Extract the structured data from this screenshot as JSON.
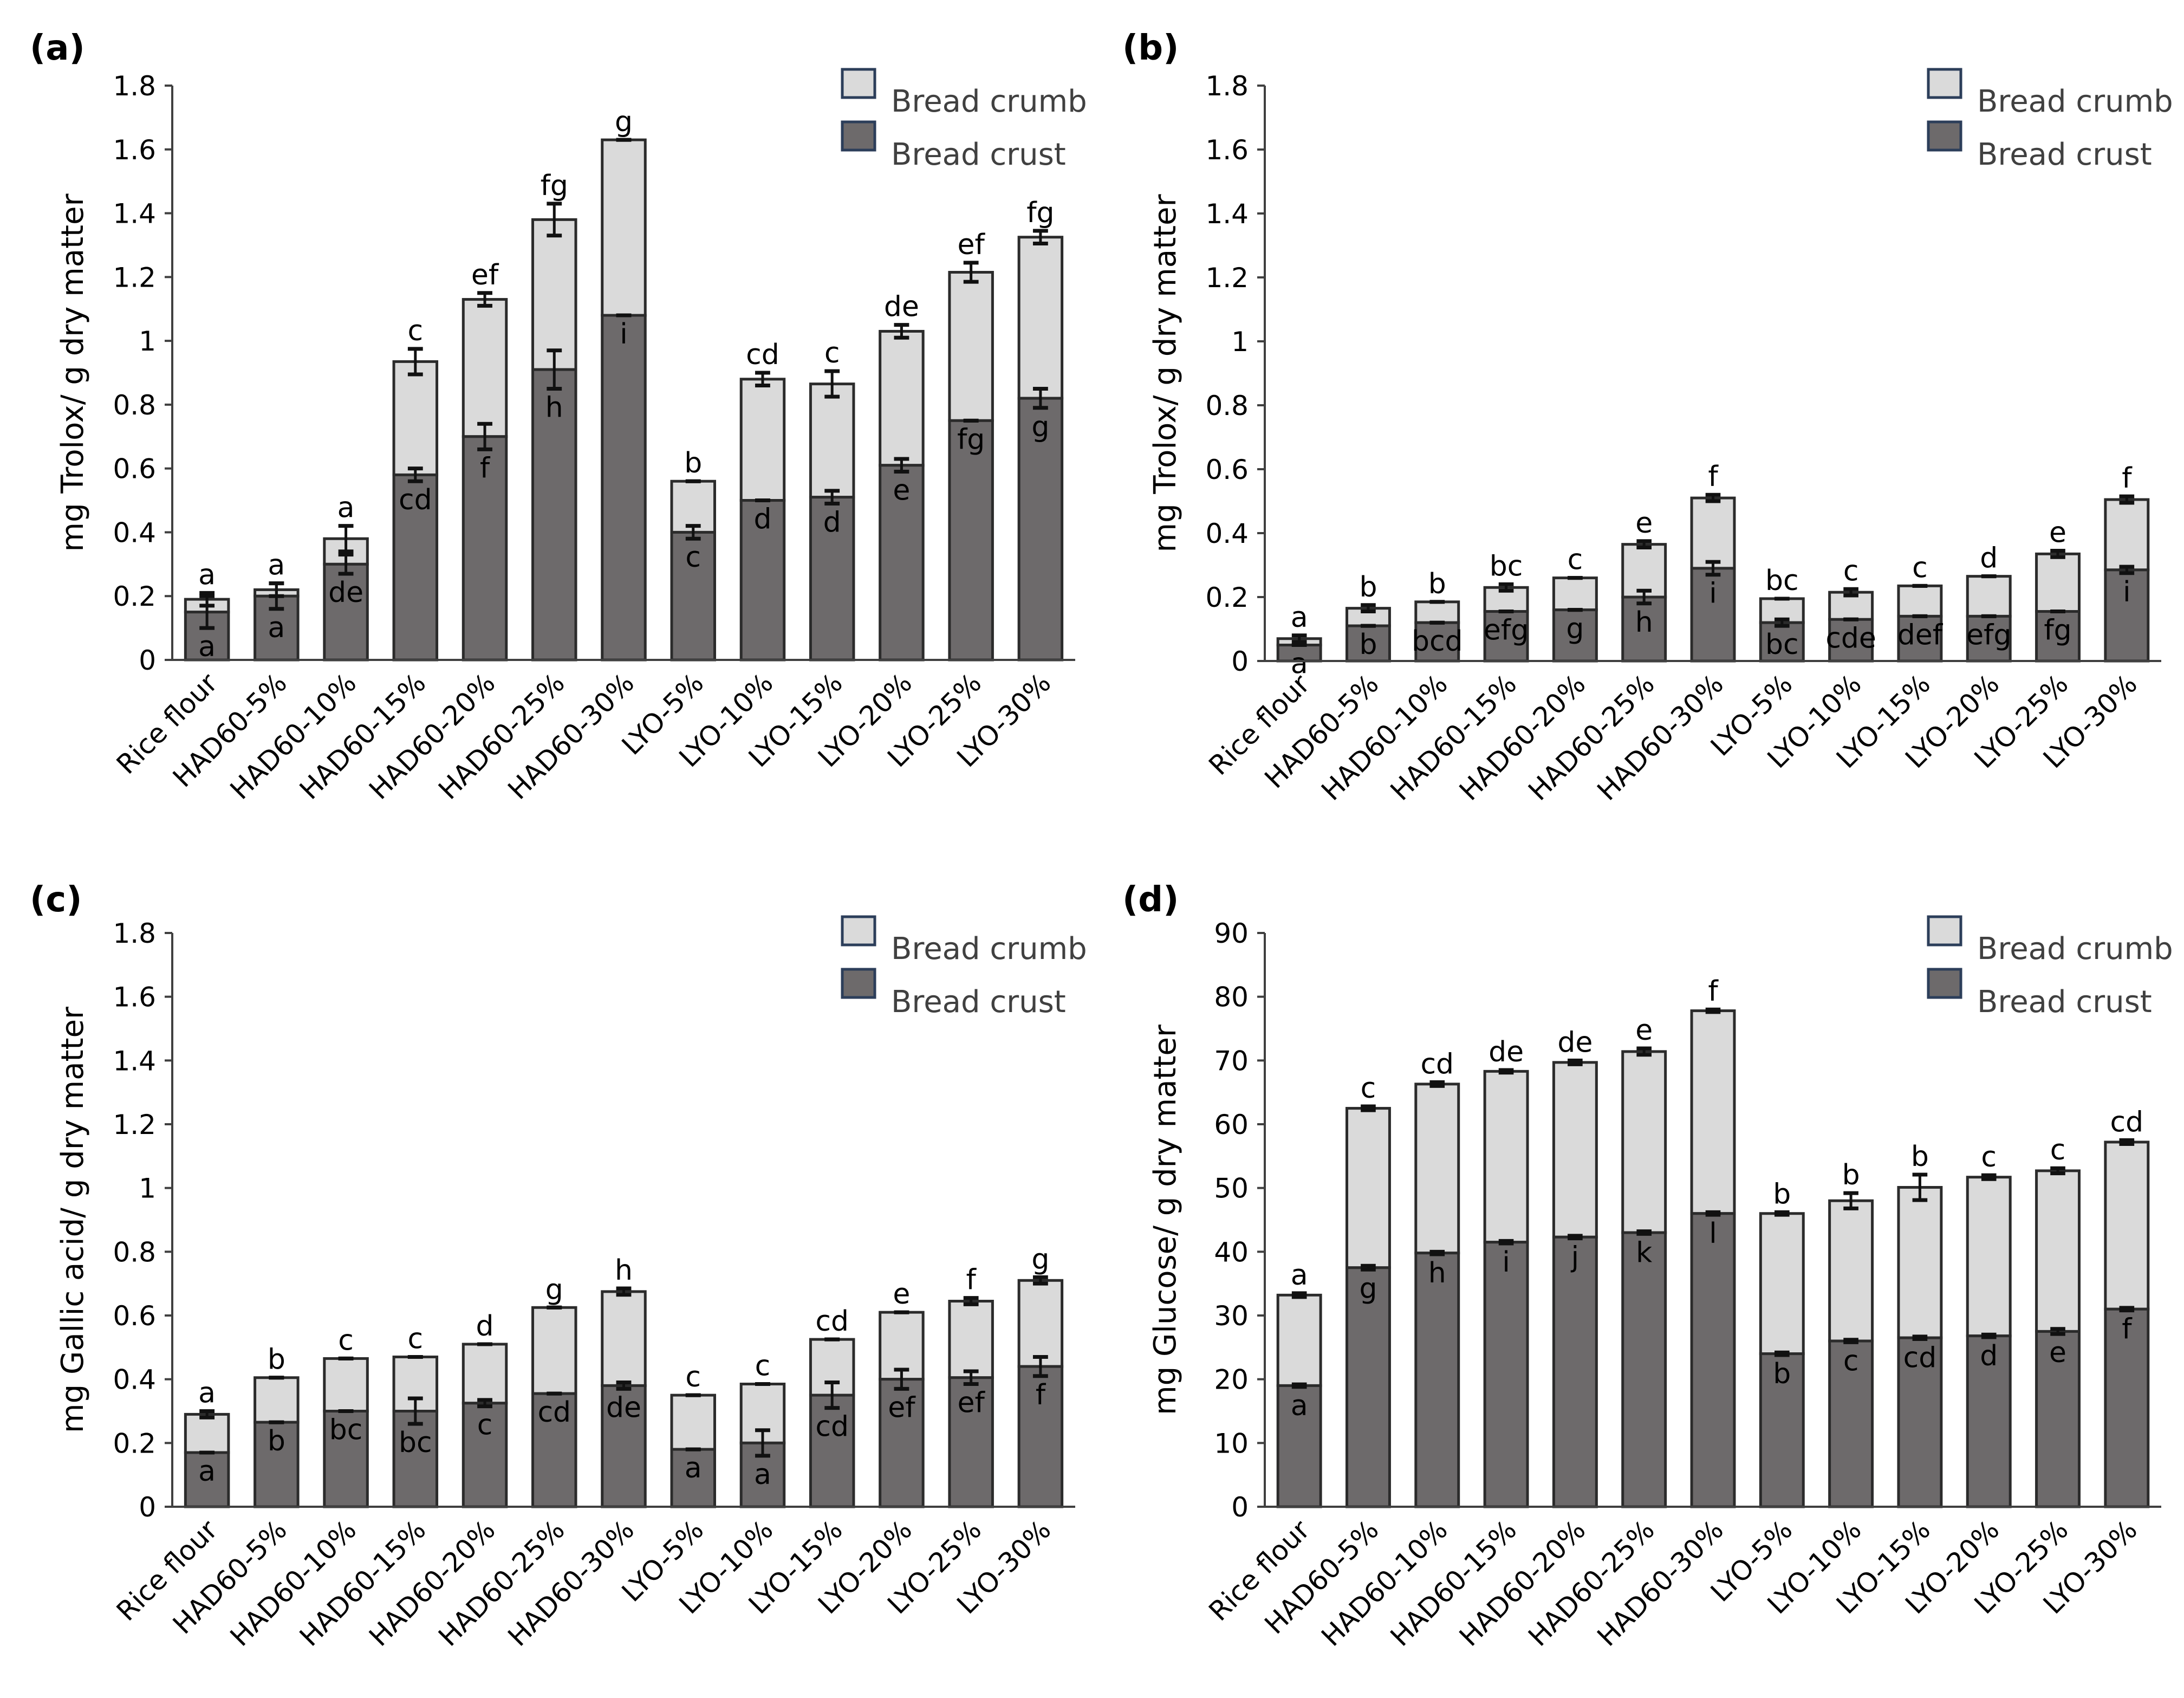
{
  "colors": {
    "crust": "#6d6a6b",
    "crumb": "#dadada",
    "axis": "#404040",
    "text": "#000000",
    "legend_border": "#2c3e5a"
  },
  "legend": {
    "crumb_label": "Bread crumb",
    "crust_label": "Bread crust"
  },
  "chart_data": [
    {
      "type": "bar",
      "panel_label": "(a)",
      "ylabel": "mg Trolox/ g dry matter",
      "ylim": [
        0,
        1.8
      ],
      "yticks": [
        "0",
        "0.2",
        "0.4",
        "0.6",
        "0.8",
        "1",
        "1.2",
        "1.4",
        "1.6",
        "1.8"
      ],
      "categories": [
        "Rice flour",
        "HAD60-5%",
        "HAD60-10%",
        "HAD60-15%",
        "HAD60-20%",
        "HAD60-25%",
        "HAD60-30%",
        "LYO-5%",
        "LYO-10%",
        "LYO-15%",
        "LYO-20%",
        "LYO-25%",
        "LYO-30%"
      ],
      "stacked": true,
      "legend_position": "top-right",
      "series": [
        {
          "name": "Bread crust",
          "values": [
            0.15,
            0.2,
            0.3,
            0.58,
            0.7,
            0.91,
            1.08,
            0.4,
            0.5,
            0.51,
            0.61,
            0.75,
            0.82
          ],
          "errors": [
            0.05,
            0.04,
            0.03,
            0.02,
            0.04,
            0.06,
            0.0,
            0.02,
            0.0,
            0.02,
            0.02,
            0.0,
            0.03
          ],
          "letters": [
            "a",
            "a",
            "de",
            "cd",
            "f",
            "h",
            "i",
            "c",
            "d",
            "d",
            "e",
            "fg",
            "g"
          ]
        },
        {
          "name": "Bread crumb",
          "values": [
            0.04,
            0.02,
            0.08,
            0.355,
            0.43,
            0.47,
            0.55,
            0.16,
            0.38,
            0.355,
            0.42,
            0.465,
            0.505
          ],
          "totals": [
            0.19,
            0.22,
            0.38,
            0.935,
            1.13,
            1.38,
            1.63,
            0.56,
            0.88,
            0.865,
            1.03,
            1.215,
            1.325
          ],
          "errors": [
            0.02,
            0.02,
            0.04,
            0.04,
            0.02,
            0.05,
            0.0,
            0.0,
            0.02,
            0.04,
            0.02,
            0.03,
            0.02
          ],
          "letters": [
            "a",
            "a",
            "a",
            "c",
            "ef",
            "fg",
            "g",
            "b",
            "cd",
            "c",
            "de",
            "ef",
            "fg"
          ]
        }
      ]
    },
    {
      "type": "bar",
      "panel_label": "(b)",
      "ylabel": "mg Trolox/ g dry matter",
      "ylim": [
        0,
        1.8
      ],
      "yticks": [
        "0",
        "0.2",
        "0.4",
        "0.6",
        "0.8",
        "1",
        "1.2",
        "1.4",
        "1.6",
        "1.8"
      ],
      "categories": [
        "Rice flour",
        "HAD60-5%",
        "HAD60-10%",
        "HAD60-15%",
        "HAD60-20%",
        "HAD60-25%",
        "HAD60-30%",
        "LYO-5%",
        "LYO-10%",
        "LYO-15%",
        "LYO-20%",
        "LYO-25%",
        "LYO-30%"
      ],
      "stacked": true,
      "legend_position": "top-right",
      "series": [
        {
          "name": "Bread crust",
          "values": [
            0.05,
            0.11,
            0.12,
            0.155,
            0.16,
            0.2,
            0.29,
            0.12,
            0.13,
            0.14,
            0.14,
            0.155,
            0.285
          ],
          "errors": [
            0.0,
            0.0,
            0.0,
            0.0,
            0.0,
            0.02,
            0.02,
            0.01,
            0.0,
            0.0,
            0.0,
            0.0,
            0.01
          ],
          "letters": [
            "a",
            "b",
            "bcd",
            "efg",
            "g",
            "h",
            "i",
            "bc",
            "cde",
            "def",
            "efg",
            "fg",
            "i"
          ]
        },
        {
          "name": "Bread crumb",
          "values": [
            0.02,
            0.055,
            0.065,
            0.075,
            0.1,
            0.165,
            0.22,
            0.075,
            0.085,
            0.095,
            0.125,
            0.18,
            0.22
          ],
          "totals": [
            0.07,
            0.165,
            0.185,
            0.23,
            0.26,
            0.365,
            0.51,
            0.195,
            0.215,
            0.235,
            0.265,
            0.335,
            0.505
          ],
          "errors": [
            0.01,
            0.01,
            0.0,
            0.01,
            0.0,
            0.01,
            0.01,
            0.0,
            0.01,
            0.0,
            0.0,
            0.01,
            0.01
          ],
          "letters": [
            "a",
            "b",
            "b",
            "bc",
            "c",
            "e",
            "f",
            "bc",
            "c",
            "c",
            "d",
            "e",
            "f"
          ]
        }
      ]
    },
    {
      "type": "bar",
      "panel_label": "(c)",
      "ylabel": "mg Gallic acid/ g dry matter",
      "ylim": [
        0,
        1.8
      ],
      "yticks": [
        "0",
        "0.2",
        "0.4",
        "0.6",
        "0.8",
        "1",
        "1.2",
        "1.4",
        "1.6",
        "1.8"
      ],
      "categories": [
        "Rice flour",
        "HAD60-5%",
        "HAD60-10%",
        "HAD60-15%",
        "HAD60-20%",
        "HAD60-25%",
        "HAD60-30%",
        "LYO-5%",
        "LYO-10%",
        "LYO-15%",
        "LYO-20%",
        "LYO-25%",
        "LYO-30%"
      ],
      "stacked": true,
      "legend_position": "top-right",
      "series": [
        {
          "name": "Bread crust",
          "values": [
            0.17,
            0.265,
            0.3,
            0.3,
            0.325,
            0.355,
            0.38,
            0.18,
            0.2,
            0.35,
            0.4,
            0.405,
            0.44
          ],
          "errors": [
            0.0,
            0.0,
            0.0,
            0.04,
            0.01,
            0.0,
            0.01,
            0.0,
            0.04,
            0.04,
            0.03,
            0.02,
            0.03
          ],
          "letters": [
            "a",
            "b",
            "bc",
            "bc",
            "c",
            "cd",
            "de",
            "a",
            "a",
            "cd",
            "ef",
            "ef",
            "f"
          ]
        },
        {
          "name": "Bread crumb",
          "values": [
            0.12,
            0.14,
            0.165,
            0.17,
            0.185,
            0.27,
            0.295,
            0.17,
            0.185,
            0.175,
            0.21,
            0.24,
            0.27
          ],
          "totals": [
            0.29,
            0.405,
            0.465,
            0.47,
            0.51,
            0.625,
            0.675,
            0.35,
            0.385,
            0.525,
            0.61,
            0.645,
            0.71
          ],
          "errors": [
            0.01,
            0.0,
            0.0,
            0.0,
            0.0,
            0.0,
            0.01,
            0.0,
            0.0,
            0.0,
            0.0,
            0.01,
            0.01
          ],
          "letters": [
            "a",
            "b",
            "c",
            "c",
            "d",
            "g",
            "h",
            "c",
            "c",
            "cd",
            "e",
            "f",
            "g"
          ]
        }
      ]
    },
    {
      "type": "bar",
      "panel_label": "(d)",
      "ylabel": "mg Glucose/ g dry matter",
      "ylim": [
        0,
        90
      ],
      "yticks": [
        "0",
        "10",
        "20",
        "30",
        "40",
        "50",
        "60",
        "70",
        "80",
        "90"
      ],
      "categories": [
        "Rice flour",
        "HAD60-5%",
        "HAD60-10%",
        "HAD60-15%",
        "HAD60-20%",
        "HAD60-25%",
        "HAD60-30%",
        "LYO-5%",
        "LYO-10%",
        "LYO-15%",
        "LYO-20%",
        "LYO-25%",
        "LYO-30%"
      ],
      "stacked": true,
      "legend_position": "top-right",
      "series": [
        {
          "name": "Bread crust",
          "values": [
            19,
            37.5,
            39.8,
            41.5,
            42.3,
            43,
            46,
            24,
            26,
            26.5,
            26.8,
            27.5,
            31
          ],
          "errors": [
            0.2,
            0.3,
            0.2,
            0.2,
            0.2,
            0.2,
            0.2,
            0.2,
            0.2,
            0.2,
            0.2,
            0.4,
            0.2
          ],
          "letters": [
            "a",
            "g",
            "h",
            "i",
            "j",
            "k",
            "l",
            "b",
            "c",
            "cd",
            "d",
            "e",
            "f"
          ]
        },
        {
          "name": "Bread crumb",
          "values": [
            14.2,
            25,
            26.5,
            26.8,
            27.4,
            28.4,
            31.8,
            22,
            22,
            23.6,
            24.9,
            25.2,
            26.2
          ],
          "totals": [
            33.2,
            62.5,
            66.3,
            68.3,
            69.7,
            71.4,
            77.8,
            46,
            48,
            50.1,
            51.7,
            52.7,
            57.2
          ],
          "errors": [
            0.3,
            0.3,
            0.3,
            0.2,
            0.3,
            0.5,
            0.2,
            0.2,
            1.2,
            2.0,
            0.3,
            0.4,
            0.3
          ],
          "letters": [
            "a",
            "c",
            "cd",
            "de",
            "de",
            "e",
            "f",
            "b",
            "b",
            "b",
            "c",
            "c",
            "cd"
          ]
        }
      ]
    }
  ]
}
